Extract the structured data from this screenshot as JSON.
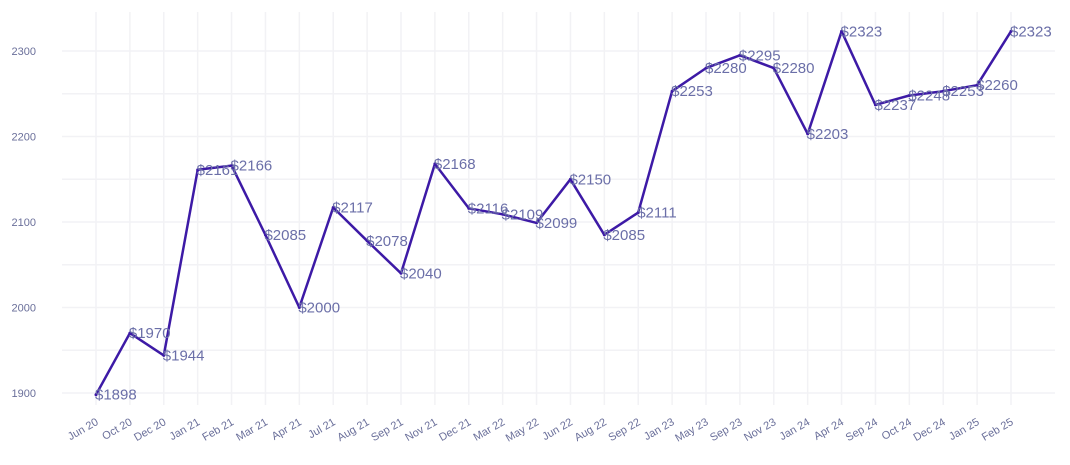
{
  "chart_data": {
    "type": "line",
    "title": "",
    "xlabel": "",
    "ylabel": "",
    "ylim": [
      1885,
      2335
    ],
    "yticks": [
      1900,
      2000,
      2100,
      2200,
      2300
    ],
    "ytick_labels": [
      "1900",
      "2000",
      "2100",
      "2200",
      "2300"
    ],
    "grid": true,
    "line_color": "#3d1aa6",
    "categories": [
      "Jun 20",
      "Oct 20",
      "Dec 20",
      "Jan 21",
      "Feb 21",
      "Mar 21",
      "Apr 21",
      "Jul 21",
      "Aug 21",
      "Sep 21",
      "Nov 21",
      "Dec 21",
      "Mar 22",
      "May 22",
      "Jun 22",
      "Aug 22",
      "Sep 22",
      "Jan 23",
      "May 23",
      "Sep 23",
      "Nov 23",
      "Jan 24",
      "Apr 24",
      "Sep 24",
      "Oct 24",
      "Dec 24",
      "Jan 25",
      "Feb 25"
    ],
    "values": [
      1898,
      1970,
      1944,
      2161,
      2166,
      2085,
      2000,
      2117,
      2078,
      2040,
      2168,
      2116,
      2109,
      2099,
      2150,
      2085,
      2111,
      2253,
      2280,
      2295,
      2280,
      2203,
      2323,
      2237,
      2248,
      2253,
      2260,
      2323
    ],
    "data_labels": [
      "$1898",
      "$1970",
      "$1944",
      "$2161",
      "$2166",
      "$2085",
      "$2000",
      "$2117",
      "$2078",
      "$2040",
      "$2168",
      "$2116",
      "$2109",
      "$2099",
      "$2150",
      "$2085",
      "$2111",
      "$2253",
      "$2280",
      "$2295",
      "$2280",
      "$2203",
      "$2323",
      "$2237",
      "$2248",
      "$2253",
      "$2260",
      "$2323"
    ]
  }
}
